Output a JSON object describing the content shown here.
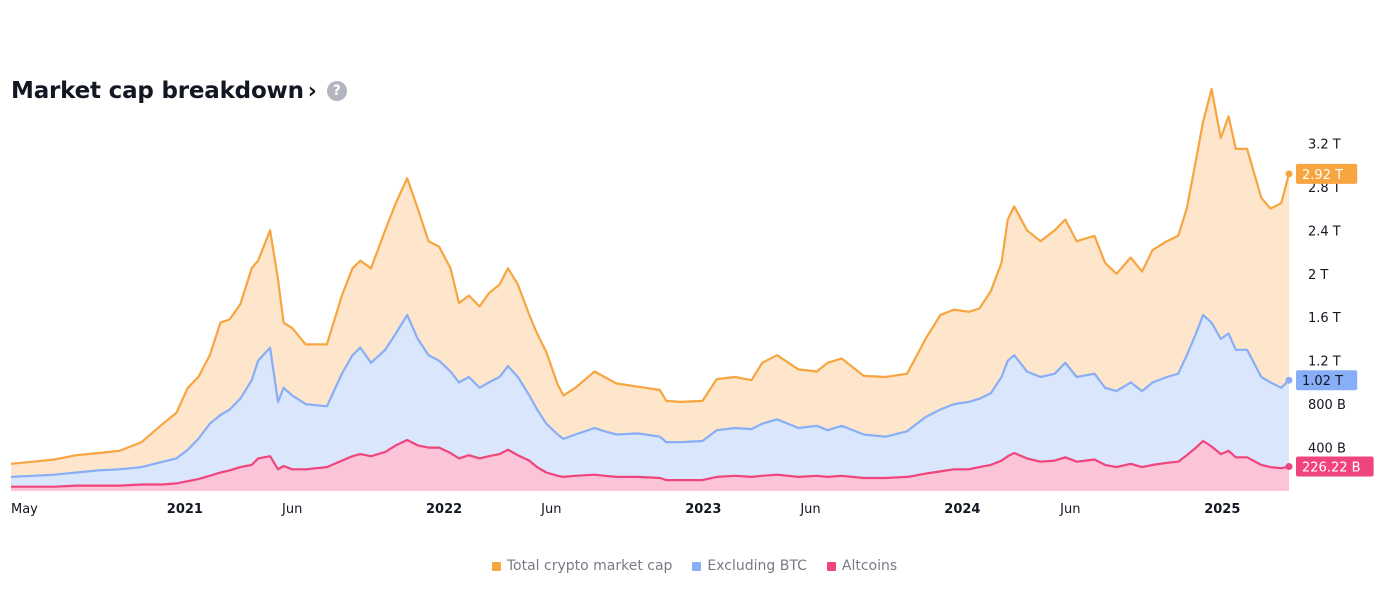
{
  "header": {
    "title": "Market cap breakdown",
    "arrow": "›",
    "help": "?"
  },
  "legend": {
    "items": [
      {
        "label": "Total crypto market cap",
        "color": "#f7a540"
      },
      {
        "label": "Excluding BTC",
        "color": "#88aef7"
      },
      {
        "label": "Altcoins",
        "color": "#f0457c"
      }
    ]
  },
  "chart_data": {
    "type": "area",
    "title": "Market cap breakdown",
    "xlabel": "",
    "ylabel": "",
    "ylim": [
      0,
      3.6
    ],
    "xlim": [
      "2020-05-01",
      "2025-04-05"
    ],
    "grid": false,
    "legend_placement": "bottom-center",
    "y_ticks": [
      {
        "value": 0.4,
        "label": "400 B"
      },
      {
        "value": 0.8,
        "label": "800 B"
      },
      {
        "value": 1.2,
        "label": "1.2 T"
      },
      {
        "value": 1.6,
        "label": "1.6 T"
      },
      {
        "value": 2.0,
        "label": "2 T"
      },
      {
        "value": 2.4,
        "label": "2.4 T"
      },
      {
        "value": 2.8,
        "label": "2.8 T"
      },
      {
        "value": 3.2,
        "label": "3.2 T"
      }
    ],
    "x_ticks": [
      {
        "date": "2020-05-01",
        "label": "May",
        "bold": false
      },
      {
        "date": "2021-01-01",
        "label": "2021",
        "bold": true
      },
      {
        "date": "2021-06-01",
        "label": "Jun",
        "bold": false
      },
      {
        "date": "2022-01-01",
        "label": "2022",
        "bold": true
      },
      {
        "date": "2022-06-01",
        "label": "Jun",
        "bold": false
      },
      {
        "date": "2023-01-01",
        "label": "2023",
        "bold": true
      },
      {
        "date": "2023-06-01",
        "label": "Jun",
        "bold": false
      },
      {
        "date": "2024-01-01",
        "label": "2024",
        "bold": true
      },
      {
        "date": "2024-06-01",
        "label": "Jun",
        "bold": false
      },
      {
        "date": "2025-01-01",
        "label": "2025",
        "bold": true
      }
    ],
    "x": [
      "2020-05-01",
      "2020-06-01",
      "2020-07-01",
      "2020-08-01",
      "2020-09-01",
      "2020-10-01",
      "2020-11-01",
      "2020-12-01",
      "2020-12-20",
      "2021-01-05",
      "2021-01-20",
      "2021-02-05",
      "2021-02-20",
      "2021-03-05",
      "2021-03-20",
      "2021-04-05",
      "2021-04-14",
      "2021-05-01",
      "2021-05-12",
      "2021-05-20",
      "2021-06-01",
      "2021-06-20",
      "2021-07-20",
      "2021-08-10",
      "2021-08-25",
      "2021-09-05",
      "2021-09-20",
      "2021-10-10",
      "2021-10-25",
      "2021-11-10",
      "2021-11-25",
      "2021-12-10",
      "2021-12-25",
      "2022-01-10",
      "2022-01-22",
      "2022-02-05",
      "2022-02-20",
      "2022-03-05",
      "2022-03-20",
      "2022-04-01",
      "2022-04-15",
      "2022-05-01",
      "2022-05-12",
      "2022-05-25",
      "2022-06-10",
      "2022-06-18",
      "2022-07-05",
      "2022-08-01",
      "2022-08-15",
      "2022-09-01",
      "2022-10-01",
      "2022-11-01",
      "2022-11-10",
      "2022-12-01",
      "2022-12-31",
      "2023-01-20",
      "2023-02-15",
      "2023-03-10",
      "2023-03-25",
      "2023-04-15",
      "2023-05-15",
      "2023-06-10",
      "2023-06-25",
      "2023-07-15",
      "2023-08-15",
      "2023-09-15",
      "2023-10-15",
      "2023-10-25",
      "2023-11-10",
      "2023-12-01",
      "2023-12-20",
      "2024-01-10",
      "2024-01-25",
      "2024-02-10",
      "2024-02-25",
      "2024-03-05",
      "2024-03-14",
      "2024-04-01",
      "2024-04-20",
      "2024-05-10",
      "2024-05-25",
      "2024-06-10",
      "2024-07-05",
      "2024-07-20",
      "2024-08-05",
      "2024-08-25",
      "2024-09-10",
      "2024-09-25",
      "2024-10-15",
      "2024-10-31",
      "2024-11-12",
      "2024-11-25",
      "2024-12-05",
      "2024-12-17",
      "2024-12-30",
      "2025-01-10",
      "2025-01-20",
      "2025-02-05",
      "2025-02-25",
      "2025-03-10",
      "2025-03-25",
      "2025-04-05"
    ],
    "series": [
      {
        "name": "Total crypto market cap",
        "color": "#f7a540",
        "fill": "#fde6cc",
        "last_value_label": "2.92 T",
        "values": [
          0.25,
          0.27,
          0.29,
          0.33,
          0.35,
          0.37,
          0.45,
          0.62,
          0.72,
          0.95,
          1.05,
          1.25,
          1.55,
          1.58,
          1.72,
          2.05,
          2.12,
          2.4,
          1.95,
          1.55,
          1.5,
          1.35,
          1.35,
          1.8,
          2.05,
          2.12,
          2.05,
          2.4,
          2.65,
          2.88,
          2.6,
          2.3,
          2.25,
          2.05,
          1.73,
          1.8,
          1.7,
          1.82,
          1.9,
          2.05,
          1.9,
          1.62,
          1.45,
          1.28,
          0.98,
          0.88,
          0.95,
          1.1,
          1.05,
          0.99,
          0.96,
          0.93,
          0.83,
          0.82,
          0.83,
          1.03,
          1.05,
          1.02,
          1.18,
          1.25,
          1.12,
          1.1,
          1.18,
          1.22,
          1.06,
          1.05,
          1.08,
          1.2,
          1.4,
          1.62,
          1.67,
          1.65,
          1.68,
          1.84,
          2.1,
          2.5,
          2.62,
          2.4,
          2.3,
          2.4,
          2.5,
          2.3,
          2.35,
          2.1,
          2.0,
          2.15,
          2.02,
          2.22,
          2.3,
          2.35,
          2.6,
          3.05,
          3.4,
          3.7,
          3.25,
          3.45,
          3.15,
          3.15,
          2.7,
          2.6,
          2.65,
          2.92
        ]
      },
      {
        "name": "Excluding BTC",
        "color": "#88aef7",
        "fill": "#d9e6fb",
        "last_value_label": "1.02 T",
        "values": [
          0.13,
          0.14,
          0.15,
          0.17,
          0.19,
          0.2,
          0.22,
          0.27,
          0.3,
          0.38,
          0.48,
          0.62,
          0.7,
          0.75,
          0.85,
          1.02,
          1.2,
          1.32,
          0.82,
          0.95,
          0.88,
          0.8,
          0.78,
          1.08,
          1.25,
          1.32,
          1.18,
          1.3,
          1.45,
          1.62,
          1.4,
          1.25,
          1.2,
          1.1,
          1.0,
          1.05,
          0.95,
          1.0,
          1.05,
          1.15,
          1.05,
          0.88,
          0.75,
          0.62,
          0.52,
          0.48,
          0.52,
          0.58,
          0.55,
          0.52,
          0.53,
          0.5,
          0.45,
          0.45,
          0.46,
          0.56,
          0.58,
          0.57,
          0.62,
          0.66,
          0.58,
          0.6,
          0.56,
          0.6,
          0.52,
          0.5,
          0.55,
          0.6,
          0.68,
          0.75,
          0.8,
          0.82,
          0.85,
          0.9,
          1.05,
          1.2,
          1.25,
          1.1,
          1.05,
          1.08,
          1.18,
          1.05,
          1.08,
          0.95,
          0.92,
          1.0,
          0.92,
          1.0,
          1.05,
          1.08,
          1.25,
          1.45,
          1.62,
          1.55,
          1.4,
          1.45,
          1.3,
          1.3,
          1.05,
          1.0,
          0.95,
          1.02
        ]
      },
      {
        "name": "Altcoins",
        "color": "#f0457c",
        "fill": "#fcc4d9",
        "last_value_label": "226.22 B",
        "values": [
          0.04,
          0.04,
          0.04,
          0.05,
          0.05,
          0.05,
          0.06,
          0.06,
          0.07,
          0.09,
          0.11,
          0.14,
          0.17,
          0.19,
          0.22,
          0.24,
          0.3,
          0.32,
          0.2,
          0.23,
          0.2,
          0.2,
          0.22,
          0.28,
          0.32,
          0.34,
          0.32,
          0.36,
          0.42,
          0.47,
          0.42,
          0.4,
          0.4,
          0.35,
          0.3,
          0.33,
          0.3,
          0.32,
          0.34,
          0.38,
          0.33,
          0.28,
          0.22,
          0.17,
          0.14,
          0.13,
          0.14,
          0.15,
          0.14,
          0.13,
          0.13,
          0.12,
          0.1,
          0.1,
          0.1,
          0.13,
          0.14,
          0.13,
          0.14,
          0.15,
          0.13,
          0.14,
          0.13,
          0.14,
          0.12,
          0.12,
          0.13,
          0.14,
          0.16,
          0.18,
          0.2,
          0.2,
          0.22,
          0.24,
          0.28,
          0.32,
          0.35,
          0.3,
          0.27,
          0.28,
          0.31,
          0.27,
          0.29,
          0.24,
          0.22,
          0.25,
          0.22,
          0.24,
          0.26,
          0.27,
          0.33,
          0.4,
          0.46,
          0.41,
          0.34,
          0.37,
          0.31,
          0.31,
          0.24,
          0.22,
          0.21,
          0.226
        ]
      }
    ]
  }
}
